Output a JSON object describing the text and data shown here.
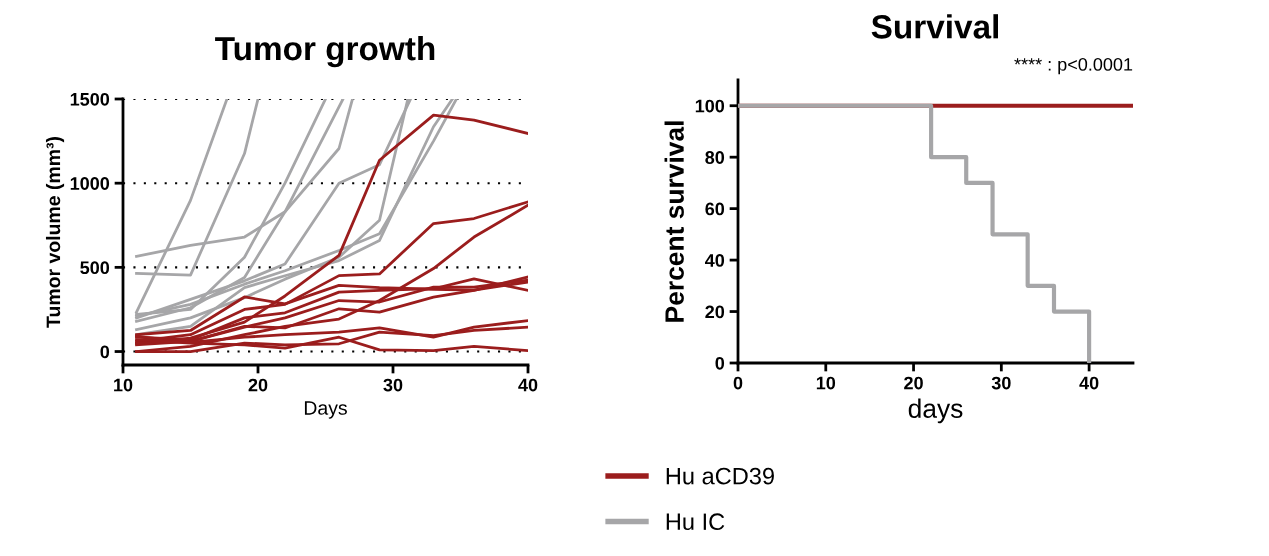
{
  "chart_data": [
    {
      "type": "line",
      "title": "Tumor growth",
      "xlabel": "Days",
      "ylabel": "Tumor volume (mm³)",
      "xlim": [
        10,
        40
      ],
      "xticks": [
        10,
        20,
        30,
        40
      ],
      "ylim": [
        -80,
        1500
      ],
      "yticks": [
        0,
        500,
        1000,
        1500
      ],
      "grid": "y",
      "line_style": "solid",
      "series": [
        {
          "color": "#a6a6a8",
          "x": [
            11,
            15,
            17.7
          ],
          "values": [
            234,
            898,
            1500
          ]
        },
        {
          "color": "#a6a6a8",
          "x": [
            11,
            15,
            19,
            20
          ],
          "values": [
            464,
            454,
            1176,
            1500
          ]
        },
        {
          "color": "#a6a6a8",
          "x": [
            11,
            15,
            19,
            22,
            25
          ],
          "values": [
            220,
            250,
            560,
            1000,
            1500
          ]
        },
        {
          "color": "#a6a6a8",
          "x": [
            11,
            15,
            19,
            22,
            26,
            27
          ],
          "values": [
            565,
            631,
            680,
            830,
            1206,
            1500
          ]
        },
        {
          "color": "#a6a6a8",
          "x": [
            11,
            15,
            19,
            22,
            26,
            29,
            31.3
          ],
          "values": [
            200,
            310,
            420,
            520,
            1000,
            1110,
            1500
          ]
        },
        {
          "color": "#a6a6a8",
          "x": [
            11,
            15,
            19,
            22,
            26.3
          ],
          "values": [
            180,
            260,
            440,
            830,
            1500
          ]
        },
        {
          "color": "#a6a6a8",
          "x": [
            11,
            15,
            19,
            22,
            26,
            29,
            31.1
          ],
          "values": [
            130,
            200,
            320,
            430,
            560,
            780,
            1500
          ]
        },
        {
          "color": "#a6a6a8",
          "x": [
            11,
            15,
            19,
            22,
            26,
            29,
            33,
            34.4
          ],
          "values": [
            100,
            150,
            380,
            450,
            540,
            660,
            1335,
            1500
          ]
        },
        {
          "color": "#a6a6a8",
          "x": [
            11,
            15,
            19,
            22,
            26,
            29,
            33,
            34.7
          ],
          "values": [
            210,
            280,
            400,
            480,
            600,
            700,
            1250,
            1500
          ]
        },
        {
          "color": "#9b1d1d",
          "x": [
            11,
            15,
            19,
            22,
            26,
            29,
            33,
            36,
            40
          ],
          "values": [
            50,
            80,
            175,
            330,
            571,
            1136,
            1404,
            1375,
            1295
          ]
        },
        {
          "color": "#9b1d1d",
          "x": [
            11,
            15,
            19,
            22,
            26,
            29,
            33,
            36,
            40
          ],
          "values": [
            60,
            100,
            250,
            280,
            451,
            461,
            760,
            790,
            889
          ]
        },
        {
          "color": "#9b1d1d",
          "x": [
            11,
            15,
            19,
            22,
            26,
            29,
            33,
            36,
            40
          ],
          "values": [
            0,
            30,
            100,
            150,
            193,
            303,
            493,
            680,
            869
          ]
        },
        {
          "color": "#9b1d1d",
          "x": [
            11,
            15,
            19,
            22,
            26,
            29,
            33,
            36,
            40
          ],
          "values": [
            100,
            125,
            324,
            283,
            393,
            380,
            370,
            365,
            413
          ]
        },
        {
          "color": "#9b1d1d",
          "x": [
            11,
            15,
            19,
            22,
            26,
            29,
            33,
            36,
            40
          ],
          "values": [
            85,
            70,
            200,
            230,
            353,
            363,
            373,
            432,
            363
          ]
        },
        {
          "color": "#9b1d1d",
          "x": [
            11,
            15,
            19,
            22,
            26,
            29,
            33,
            36,
            40
          ],
          "values": [
            40,
            60,
            150,
            140,
            254,
            234,
            323,
            363,
            443
          ]
        },
        {
          "color": "#9b1d1d",
          "x": [
            11,
            15,
            19,
            22,
            26,
            29,
            33,
            36,
            40
          ],
          "values": [
            50,
            60,
            145,
            200,
            303,
            294,
            383,
            383,
            424
          ]
        },
        {
          "color": "#9b1d1d",
          "x": [
            11,
            15,
            19,
            22,
            26,
            29,
            33,
            36,
            40
          ],
          "values": [
            90,
            55,
            85,
            100,
            115,
            141,
            85,
            145,
            184
          ]
        },
        {
          "color": "#9b1d1d",
          "x": [
            11,
            15,
            19,
            22,
            26,
            29,
            33,
            36,
            40
          ],
          "values": [
            0,
            0,
            50,
            40,
            46,
            115,
            95,
            125,
            145
          ]
        },
        {
          "color": "#9b1d1d",
          "x": [
            11,
            15,
            19,
            22,
            26,
            29,
            33,
            36,
            40
          ],
          "values": [
            70,
            50,
            40,
            20,
            85,
            10,
            5,
            30,
            6
          ]
        }
      ]
    },
    {
      "type": "step",
      "title": "Survival",
      "xlabel": "days",
      "ylabel": "Percent survival",
      "xlim": [
        0,
        45
      ],
      "xticks": [
        0,
        10,
        20,
        30,
        40
      ],
      "ylim": [
        0,
        110
      ],
      "yticks": [
        0,
        20,
        40,
        60,
        80,
        100
      ],
      "grid": false,
      "legend": "bottom",
      "annotations": [
        "**** : p<0.0001"
      ],
      "series": [
        {
          "name": "Hu aCD39",
          "color": "#9b1d1d",
          "x": [
            0,
            45
          ],
          "values": [
            100,
            100
          ]
        },
        {
          "name": "Hu IC",
          "color": "#a6a6a8",
          "x": [
            0,
            22,
            26,
            29,
            33,
            36,
            40
          ],
          "values": [
            100,
            80,
            70,
            50,
            30,
            20,
            0
          ]
        }
      ]
    }
  ]
}
